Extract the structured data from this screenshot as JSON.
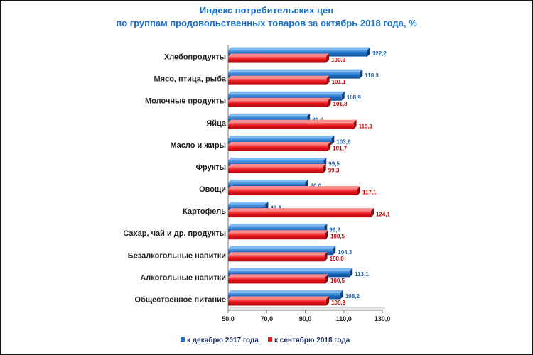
{
  "chart_data": {
    "type": "bar",
    "orientation": "horizontal",
    "title": [
      "Индекс потребительских цен",
      "по группам продовольственных товаров за октябрь 2018 года, %"
    ],
    "categories": [
      "Хлебопродукты",
      "Мясо, птица, рыба",
      "Молочные продукты",
      "Яйца",
      "Масло и жиры",
      "Фрукты",
      "Овощи",
      "Картофель",
      "Сахар, чай и др. продукты",
      "Безалкогольные напитки",
      "Алкогольные напитки",
      "Общественное питание"
    ],
    "series": [
      {
        "name": "к декабрю 2017 года",
        "color": "#1f6fc5",
        "values": [
          122.2,
          118.3,
          108.9,
          91.0,
          103.6,
          99.5,
          90.0,
          69.3,
          99.9,
          104.3,
          113.1,
          108.2
        ],
        "labels": [
          "122,2",
          "118,3",
          "108,9",
          "91,0",
          "103,6",
          "99,5",
          "90,0",
          "69,3",
          "99,9",
          "104,3",
          "113,1",
          "108,2"
        ]
      },
      {
        "name": "к сентябрю 2018 года",
        "color": "#e8141b",
        "values": [
          100.9,
          101.1,
          101.8,
          115.1,
          101.7,
          99.3,
          117.1,
          124.1,
          100.5,
          100.0,
          100.5,
          100.9
        ],
        "labels": [
          "100,9",
          "101,1",
          "101,8",
          "115,1",
          "101,7",
          "99,3",
          "117,1",
          "124,1",
          "100,5",
          "100,0",
          "100,5",
          "100,9"
        ]
      }
    ],
    "xlim": [
      50,
      130
    ],
    "xticks": [
      50,
      70,
      90,
      110,
      130
    ],
    "xtick_labels": [
      "50,0",
      "70,0",
      "90,0",
      "110,0",
      "130,0"
    ],
    "grid": false,
    "legend_position": "bottom"
  }
}
